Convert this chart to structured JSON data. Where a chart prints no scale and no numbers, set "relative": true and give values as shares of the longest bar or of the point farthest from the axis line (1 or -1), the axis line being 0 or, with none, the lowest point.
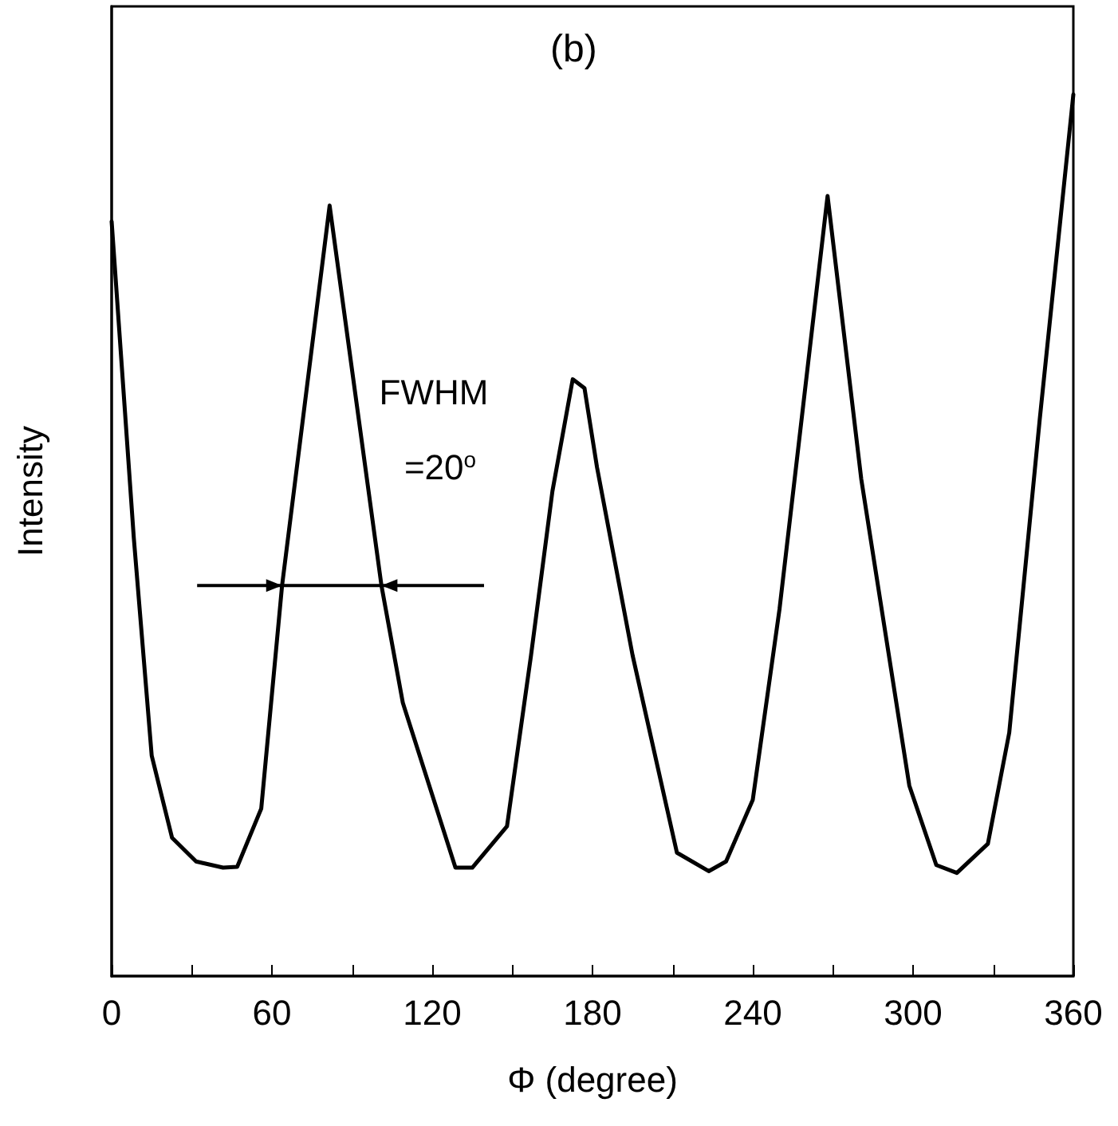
{
  "chart_data": {
    "type": "line",
    "title": "(b)",
    "xlabel": "Φ (degree)",
    "ylabel": "Intensity",
    "relative": true,
    "color": "#000000",
    "marker": "none",
    "line_style": "solid",
    "grid": false,
    "x": [
      0,
      8.3,
      15,
      22.6,
      31.6,
      41.7,
      47,
      56,
      63.8,
      81.6,
      101,
      109,
      128.7,
      135,
      148,
      157,
      165,
      172.6,
      177,
      181.7,
      195,
      211.6,
      223.5,
      230,
      240,
      250,
      268,
      280.6,
      298.6,
      308.7,
      316.4,
      328,
      336,
      347.4,
      360
    ],
    "values": [
      0.856,
      0.497,
      0.25,
      0.157,
      0.13,
      0.123,
      0.124,
      0.19,
      0.443,
      0.874,
      0.443,
      0.31,
      0.123,
      0.123,
      0.17,
      0.364,
      0.55,
      0.677,
      0.667,
      0.577,
      0.364,
      0.14,
      0.119,
      0.13,
      0.2,
      0.416,
      0.885,
      0.564,
      0.216,
      0.126,
      0.117,
      0.15,
      0.276,
      0.631,
      1
    ],
    "xlim": [
      0,
      360
    ],
    "xticks": [
      0,
      {
        "value": 30,
        "label": null
      },
      60,
      {
        "value": 90,
        "label": null
      },
      120,
      {
        "value": 150,
        "label": null
      },
      180,
      {
        "value": 210,
        "label": null
      },
      240,
      {
        "value": 270,
        "label": null
      },
      300,
      {
        "value": 330,
        "label": null
      },
      360
    ],
    "annotations": [
      "FWHM",
      "=20$^{o}$"
    ]
  }
}
